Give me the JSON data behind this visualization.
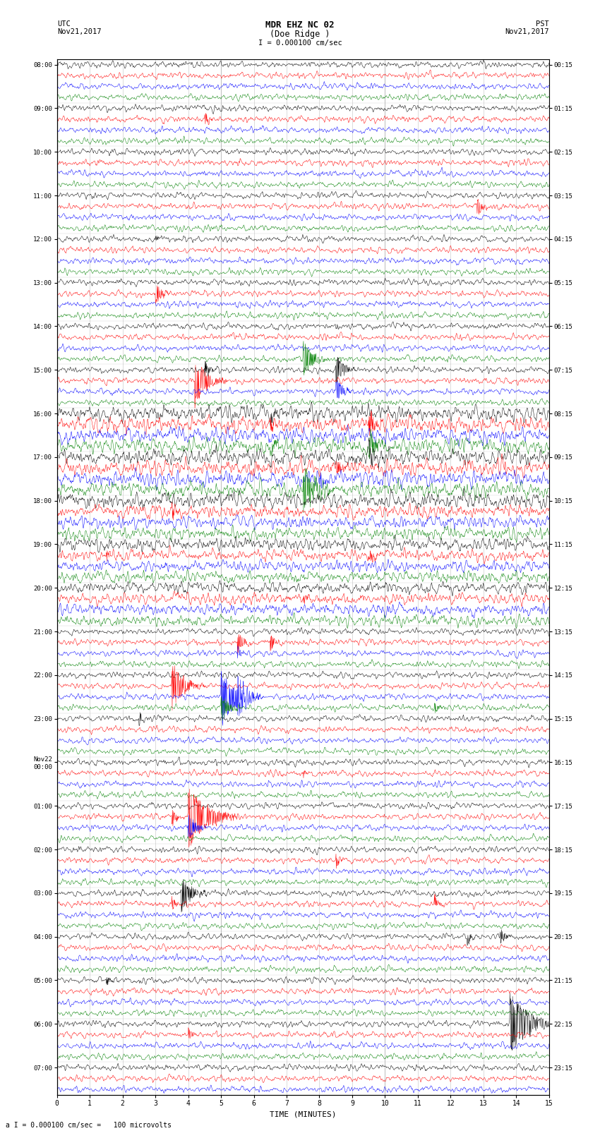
{
  "title_line1": "MDR EHZ NC 02",
  "title_line2": "(Doe Ridge )",
  "scale_label": "I = 0.000100 cm/sec",
  "utc_label": "UTC\nNov21,2017",
  "pst_label": "PST\nNov21,2017",
  "xlabel": "TIME (MINUTES)",
  "footer": "a I = 0.000100 cm/sec =   100 microvolts",
  "left_times": [
    "08:00",
    "",
    "",
    "",
    "09:00",
    "",
    "",
    "",
    "10:00",
    "",
    "",
    "",
    "11:00",
    "",
    "",
    "",
    "12:00",
    "",
    "",
    "",
    "13:00",
    "",
    "",
    "",
    "14:00",
    "",
    "",
    "",
    "15:00",
    "",
    "",
    "",
    "16:00",
    "",
    "",
    "",
    "17:00",
    "",
    "",
    "",
    "18:00",
    "",
    "",
    "",
    "19:00",
    "",
    "",
    "",
    "20:00",
    "",
    "",
    "",
    "21:00",
    "",
    "",
    "",
    "22:00",
    "",
    "",
    "",
    "23:00",
    "",
    "",
    "",
    "Nov22\n00:00",
    "",
    "",
    "",
    "01:00",
    "",
    "",
    "",
    "02:00",
    "",
    "",
    "",
    "03:00",
    "",
    "",
    "",
    "04:00",
    "",
    "",
    "",
    "05:00",
    "",
    "",
    "",
    "06:00",
    "",
    "",
    "",
    "07:00",
    "",
    ""
  ],
  "right_times": [
    "00:15",
    "",
    "",
    "",
    "01:15",
    "",
    "",
    "",
    "02:15",
    "",
    "",
    "",
    "03:15",
    "",
    "",
    "",
    "04:15",
    "",
    "",
    "",
    "05:15",
    "",
    "",
    "",
    "06:15",
    "",
    "",
    "",
    "07:15",
    "",
    "",
    "",
    "08:15",
    "",
    "",
    "",
    "09:15",
    "",
    "",
    "",
    "10:15",
    "",
    "",
    "",
    "11:15",
    "",
    "",
    "",
    "12:15",
    "",
    "",
    "",
    "13:15",
    "",
    "",
    "",
    "14:15",
    "",
    "",
    "",
    "15:15",
    "",
    "",
    "",
    "16:15",
    "",
    "",
    "",
    "17:15",
    "",
    "",
    "",
    "18:15",
    "",
    "",
    "",
    "19:15",
    "",
    "",
    "",
    "20:15",
    "",
    "",
    "",
    "21:15",
    "",
    "",
    "",
    "22:15",
    "",
    "",
    "",
    "23:15",
    "",
    ""
  ],
  "colors": [
    "black",
    "red",
    "blue",
    "green"
  ],
  "n_rows": 95,
  "n_minutes": 15,
  "background_color": "white",
  "grid_color": "#aaaaaa",
  "noise_amplitude": 0.28,
  "seed": 12345
}
